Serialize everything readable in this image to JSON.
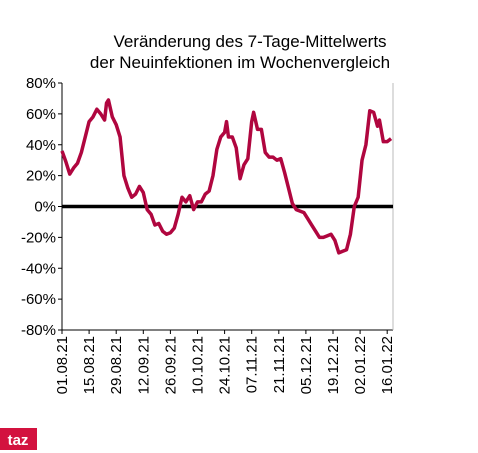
{
  "chart_data": {
    "type": "line",
    "title": [
      "Veränderung des 7-Tage-Mittelwerts",
      "der Neuinfektionen im Wochenvergleich"
    ],
    "x": [
      "01.08.21",
      "03.08.21",
      "05.08.21",
      "07.08.21",
      "09.08.21",
      "11.08.21",
      "13.08.21",
      "15.08.21",
      "17.08.21",
      "19.08.21",
      "21.08.21",
      "23.08.21",
      "24.08.21",
      "25.08.21",
      "27.08.21",
      "29.08.21",
      "31.08.21",
      "02.09.21",
      "04.09.21",
      "06.09.21",
      "08.09.21",
      "10.09.21",
      "12.09.21",
      "14.09.21",
      "16.09.21",
      "18.09.21",
      "20.09.21",
      "22.09.21",
      "24.09.21",
      "26.09.21",
      "28.09.21",
      "30.09.21",
      "02.10.21",
      "04.10.21",
      "06.10.21",
      "08.10.21",
      "10.10.21",
      "12.10.21",
      "14.10.21",
      "16.10.21",
      "18.10.21",
      "20.10.21",
      "22.10.21",
      "24.10.21",
      "25.10.21",
      "26.10.21",
      "28.10.21",
      "30.10.21",
      "01.11.21",
      "03.11.21",
      "05.11.21",
      "07.11.21",
      "08.11.21",
      "10.11.21",
      "12.11.21",
      "14.11.21",
      "16.11.21",
      "18.11.21",
      "20.11.21",
      "22.11.21",
      "24.11.21",
      "26.11.21",
      "28.11.21",
      "30.11.21",
      "02.12.21",
      "04.12.21",
      "06.12.21",
      "08.12.21",
      "10.12.21",
      "12.12.21",
      "14.12.21",
      "16.12.21",
      "18.12.21",
      "20.12.21",
      "22.12.21",
      "24.12.21",
      "26.12.21",
      "28.12.21",
      "30.12.21",
      "01.01.22",
      "03.01.22",
      "05.01.22",
      "07.01.22",
      "09.01.22",
      "11.01.22",
      "12.01.22",
      "14.01.22",
      "16.01.22",
      "18.01.22"
    ],
    "series": [
      {
        "color": "#b0063f",
        "values": [
          36,
          29,
          21,
          25,
          28,
          35,
          45,
          55,
          58,
          63,
          60,
          56,
          67,
          69,
          58,
          53,
          45,
          20,
          12,
          6,
          8,
          13,
          9,
          -2,
          -5,
          -12,
          -11,
          -16,
          -18,
          -17,
          -14,
          -5,
          6,
          3,
          7,
          -2,
          3,
          3,
          8,
          10,
          20,
          37,
          45,
          48,
          55,
          45,
          45,
          38,
          18,
          27,
          31,
          55,
          61,
          50,
          50,
          35,
          32,
          32,
          30,
          31,
          22,
          12,
          2,
          -2,
          -3,
          -4,
          -8,
          -12,
          -16,
          -20,
          -20,
          -19,
          -18,
          -22,
          -30,
          -29,
          -28,
          -18,
          0,
          6,
          30,
          40,
          62,
          61,
          52,
          56,
          42,
          42,
          44
        ]
      }
    ],
    "xlim": [
      "01.08.21",
      "19.01.22"
    ],
    "xticks": [
      "01.08.21",
      "15.08.21",
      "29.08.21",
      "12.09.21",
      "26.09.21",
      "10.10.21",
      "24.10.21",
      "07.11.21",
      "21.11.21",
      "05.12.21",
      "19.12.21",
      "02.01.22",
      "16.01.22"
    ],
    "ylim": [
      -80,
      80
    ],
    "yticks": [
      {
        "value": -80,
        "label": "-80%"
      },
      {
        "value": -60,
        "label": "-60%"
      },
      {
        "value": -40,
        "label": "-40%"
      },
      {
        "value": -20,
        "label": "-20%"
      },
      {
        "value": 0,
        "label": "0%"
      },
      {
        "value": 20,
        "label": "20%"
      },
      {
        "value": 40,
        "label": "40%"
      },
      {
        "value": 60,
        "label": "60%"
      },
      {
        "value": 80,
        "label": "80%"
      }
    ],
    "logo": "taz"
  }
}
